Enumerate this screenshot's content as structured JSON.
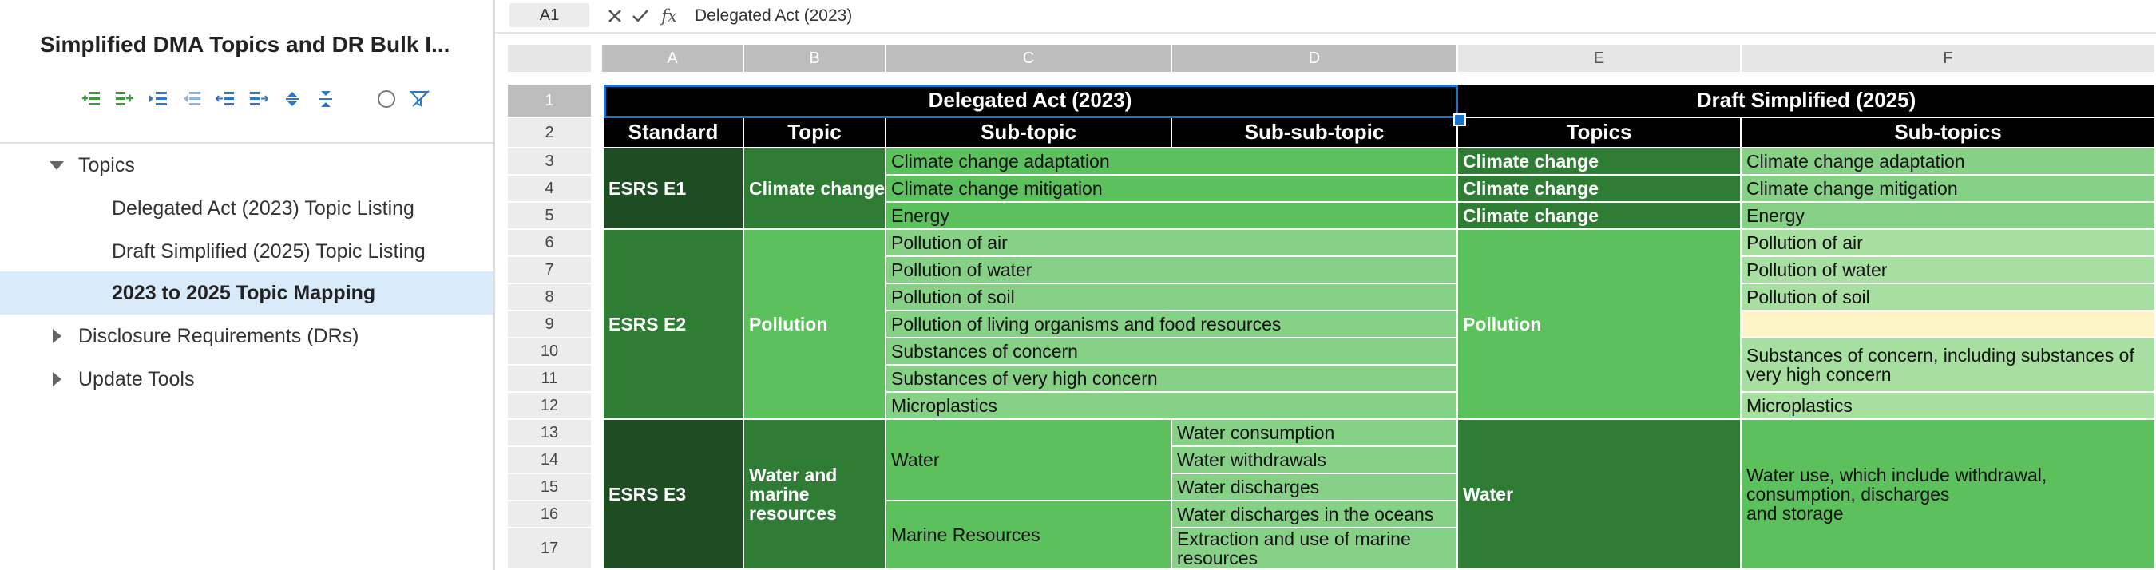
{
  "sidebar": {
    "title": "Simplified DMA Topics and DR Bulk I...",
    "tool_icons": [
      "add-child-icon",
      "add-sibling-icon",
      "indent-icon",
      "outdent-icon",
      "move-left-icon",
      "move-right-icon",
      "expand-icon",
      "collapse-icon",
      "circle-icon",
      "filter-off-icon"
    ],
    "nav": {
      "topics": "Topics",
      "delegated_listing": "Delegated Act (2023) Topic Listing",
      "draft_listing": "Draft Simplified (2025) Topic Listing",
      "mapping": "2023 to 2025 Topic Mapping",
      "drs": "Disclosure Requirements (DRs)",
      "update_tools": "Update Tools"
    }
  },
  "formula_bar": {
    "name_box": "A1",
    "value": "Delegated Act (2023)",
    "fx_label": "fx"
  },
  "columns": [
    "A",
    "B",
    "C",
    "D",
    "E",
    "F"
  ],
  "rows": [
    "1",
    "2",
    "3",
    "4",
    "5",
    "6",
    "7",
    "8",
    "9",
    "10",
    "11",
    "12",
    "13",
    "14",
    "15",
    "16",
    "17"
  ],
  "sheet": {
    "r1": {
      "delegated": "Delegated Act (2023)",
      "draft": "Draft Simplified (2025)"
    },
    "r2": {
      "standard": "Standard",
      "topic": "Topic",
      "subtopic": "Sub-topic",
      "subsubtopic": "Sub-sub-topic",
      "topics": "Topics",
      "subtopics": "Sub-topics"
    },
    "e1": {
      "standard": "ESRS E1",
      "topic": "Climate change",
      "subtopics": [
        "Climate change adaptation",
        "Climate change mitigation",
        "Energy"
      ],
      "new_topics": [
        "Climate change",
        "Climate change",
        "Climate change"
      ],
      "new_subtopics": [
        "Climate change adaptation",
        "Climate change mitigation",
        "Energy"
      ]
    },
    "e2": {
      "standard": "ESRS E2",
      "topic": "Pollution",
      "subtopics": [
        "Pollution of air",
        "Pollution of water",
        "Pollution of soil",
        "Pollution of living organisms and food resources",
        "Substances of concern",
        "Substances of very high concern",
        "Microplastics"
      ],
      "new_topic": "Pollution",
      "new_subtopics": {
        "air": "Pollution of air",
        "water": "Pollution of water",
        "soil": "Pollution of soil",
        "living": "",
        "concern_line1": "Substances of concern, including substances of",
        "concern_line2": "very high concern",
        "micro": "Microplastics"
      }
    },
    "e3": {
      "standard": "ESRS E3",
      "topic_lines": [
        "Water and",
        "marine",
        "resources"
      ],
      "water": "Water",
      "marine": "Marine Resources",
      "subsub": [
        "Water consumption",
        "Water withdrawals",
        "Water discharges",
        "Water discharges in the oceans"
      ],
      "extraction_lines": [
        "Extraction and use of marine",
        "resources"
      ],
      "new_topic": "Water",
      "new_sub_lines": [
        "Water use, which include withdrawal,",
        "consumption, discharges",
        "and storage"
      ]
    }
  },
  "colors": {
    "dark_green": "#1e4d24",
    "mid_green": "#2f7d35",
    "main_green": "#5cc15c",
    "light_green": "#87d187",
    "pale_green": "#a7dfa0",
    "cream": "#fdf5c8",
    "selection": "#1a73c8"
  }
}
